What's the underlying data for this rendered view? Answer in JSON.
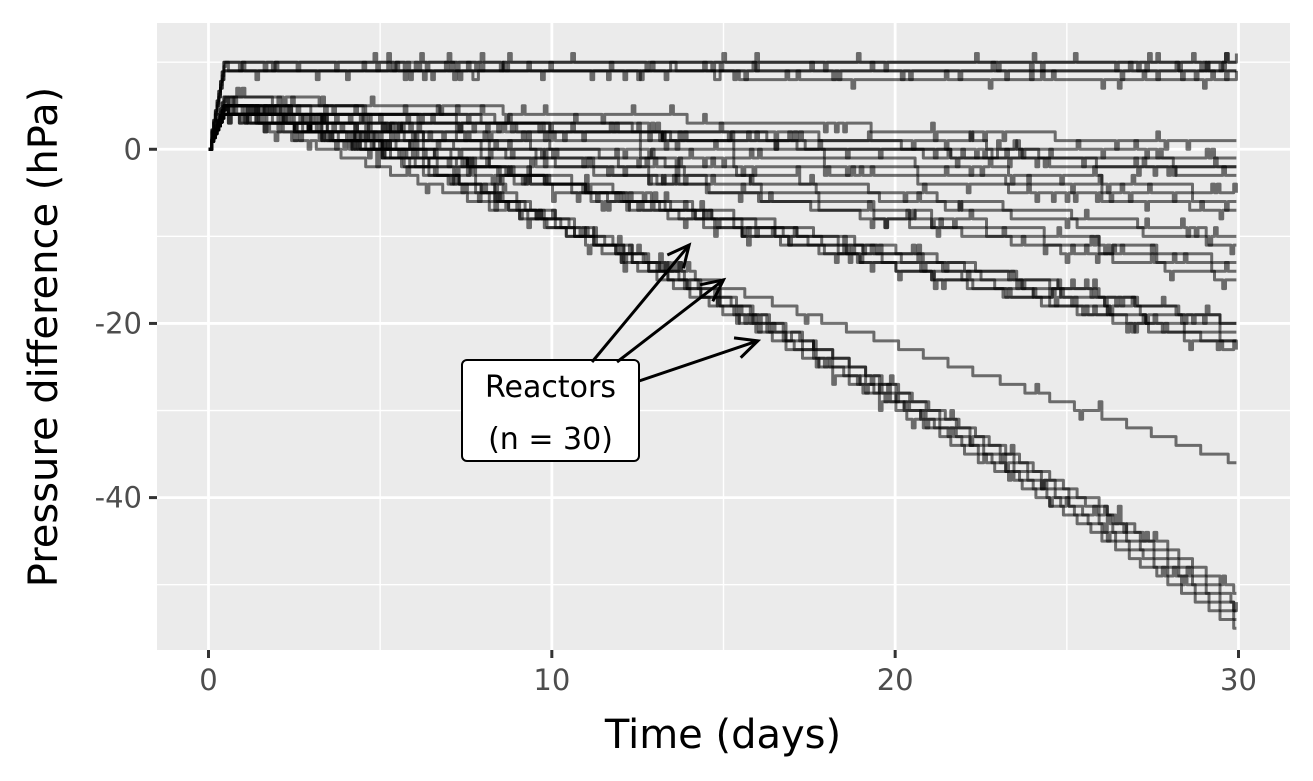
{
  "chart_data": {
    "type": "line",
    "title": "",
    "xlabel": "Time (days)",
    "ylabel": "Pressure difference (hPa)",
    "xlim": [
      -1.5,
      31.5
    ],
    "ylim": [
      -57.5,
      14.5
    ],
    "xticks": [
      0,
      10,
      20,
      30
    ],
    "xtick_labels": [
      "0",
      "10",
      "20",
      "30"
    ],
    "yticks": [
      0,
      -20,
      -40
    ],
    "ytick_labels": [
      "0",
      "-20",
      "-40"
    ],
    "grid": true,
    "legend": "none",
    "line_color": "#000000",
    "line_opacity": 0.55,
    "annotation": {
      "lines": [
        "Reactors",
        "(n = 30)"
      ],
      "points_to": [
        [
          14,
          -11
        ],
        [
          15,
          -15
        ],
        [
          16,
          -22
        ]
      ]
    },
    "series_profiles": [
      {
        "peak": 9,
        "end": 8
      },
      {
        "peak": 10,
        "end": 9.5
      },
      {
        "peak": 9.5,
        "end": 9
      },
      {
        "peak": 10,
        "end": 10
      },
      {
        "peak": 9,
        "end": 8.5
      },
      {
        "peak": 6,
        "end": 0.5
      },
      {
        "peak": 5,
        "end": -1
      },
      {
        "peak": 5.5,
        "end": -2
      },
      {
        "peak": 4.5,
        "end": -2.5
      },
      {
        "peak": 5,
        "end": -3
      },
      {
        "peak": 6,
        "end": -5
      },
      {
        "peak": 5,
        "end": -6
      },
      {
        "peak": 4,
        "end": -7
      },
      {
        "peak": 5,
        "end": -10
      },
      {
        "peak": 4.5,
        "end": -11
      },
      {
        "peak": 5,
        "end": -13
      },
      {
        "peak": 4,
        "end": -14
      },
      {
        "peak": 5,
        "end": -15
      },
      {
        "peak": 5,
        "end": -20
      },
      {
        "peak": 4,
        "end": -20
      },
      {
        "peak": 4.5,
        "end": -21
      },
      {
        "peak": 5,
        "end": -22
      },
      {
        "peak": 4,
        "end": -22.5
      },
      {
        "peak": 5,
        "end": -23
      },
      {
        "peak": 4,
        "end": -36
      },
      {
        "peak": 4,
        "end": -51
      },
      {
        "peak": 5,
        "end": -52
      },
      {
        "peak": 4,
        "end": -53
      },
      {
        "peak": 4.5,
        "end": -54
      },
      {
        "peak": 4,
        "end": -55
      }
    ]
  }
}
